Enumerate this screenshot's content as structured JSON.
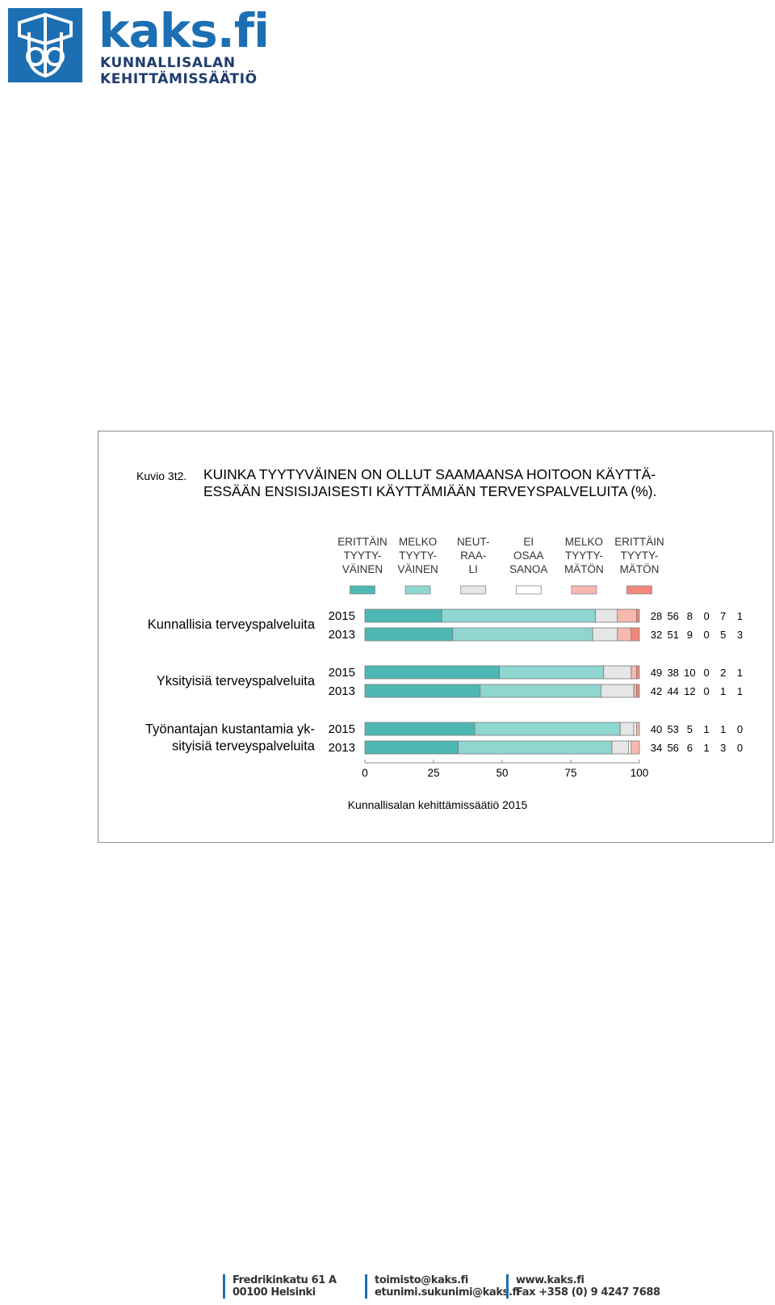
{
  "logo": {
    "name": "kaks.fi",
    "line1": "KUNNALLISALAN",
    "line2": "KEHITTÄMISSÄÄTIÖ",
    "brand_color": "#1c6fb3"
  },
  "figure": {
    "label": "Kuvio 3t2.",
    "title_line1": "KUINKA TYYTYVÄINEN ON OLLUT SAAMAANSA HOITOON KÄYTTÄ-",
    "title_line2": "ESSÄÄN ENSISIJAISESTI KÄYTTÄMIÄÄN TERVEYSPALVELUITA (%).",
    "source": "Kunnallisalan kehittämissäätiö 2015"
  },
  "chart_data": {
    "type": "bar",
    "orientation": "horizontal",
    "stacked": true,
    "legend_placement": "top",
    "legend": [
      {
        "lines": [
          "ERITTÄIN",
          "TYYTY-",
          "VÄINEN"
        ],
        "color": "#4db8b3"
      },
      {
        "lines": [
          "MELKO",
          "TYYTY-",
          "VÄINEN"
        ],
        "color": "#8fd6d1"
      },
      {
        "lines": [
          "NEUT-",
          "RAA-",
          "LI"
        ],
        "color": "#e6e6e6"
      },
      {
        "lines": [
          "EI",
          "OSAA",
          "SANOA"
        ],
        "color": "#ffffff"
      },
      {
        "lines": [
          "MELKO",
          "TYYTY-",
          "MÄTÖN"
        ],
        "color": "#f7b8ae"
      },
      {
        "lines": [
          "ERITTÄIN",
          "TYYTY-",
          "MÄTÖN"
        ],
        "color": "#f2877a"
      }
    ],
    "groups": [
      {
        "label_lines": [
          "Kunnallisia terveyspalveluita"
        ],
        "rows": [
          {
            "year": "2015",
            "values": [
              28,
              56,
              8,
              0,
              7,
              1
            ]
          },
          {
            "year": "2013",
            "values": [
              32,
              51,
              9,
              0,
              5,
              3
            ]
          }
        ]
      },
      {
        "label_lines": [
          "Yksityisiä terveyspalveluita"
        ],
        "rows": [
          {
            "year": "2015",
            "values": [
              49,
              38,
              10,
              0,
              2,
              1
            ]
          },
          {
            "year": "2013",
            "values": [
              42,
              44,
              12,
              0,
              1,
              1
            ]
          }
        ]
      },
      {
        "label_lines": [
          "Työnantajan kustantamia yk-",
          "sityisiä terveyspalveluita"
        ],
        "rows": [
          {
            "year": "2015",
            "values": [
              40,
              53,
              5,
              1,
              1,
              0
            ]
          },
          {
            "year": "2013",
            "values": [
              34,
              56,
              6,
              1,
              3,
              0
            ]
          }
        ]
      }
    ],
    "x_ticks": [
      0,
      25,
      50,
      75,
      100
    ],
    "xlim": [
      0,
      100
    ]
  },
  "footer": {
    "address_line1": "Fredrikinkatu 61 A",
    "address_line2": "00100 Helsinki",
    "email_line1": "toimisto@kaks.fi",
    "email_line2": "etunimi.sukunimi@kaks.fi",
    "web_line1": "www.kaks.fi",
    "web_line2": "Fax +358 (0) 9 4247 7688"
  }
}
